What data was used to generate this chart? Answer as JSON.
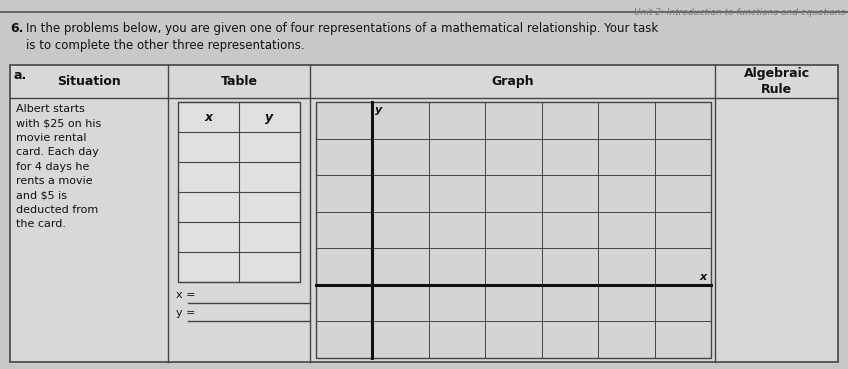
{
  "header_text": "Unit 2: Introduction to functions and equations",
  "problem_number": "6.",
  "problem_text": "In the problems below, you are given one of four representations of a mathematical relationship. Your task\nis to complete the other three representations.",
  "label_a": "a.",
  "col1_header": "Situation",
  "col2_header": "Table",
  "col3_header": "Graph",
  "col4_header": "Algebraic\nRule",
  "situation_text": "Albert starts\nwith $25 on his\nmovie rental\ncard. Each day\nfor 4 days he\nrents a movie\nand $5 is\ndeducted from\nthe card.",
  "table_col1": "x",
  "table_col2": "y",
  "table_rows": 5,
  "x_label_blank": "x =",
  "y_label_blank": "y =",
  "graph_x_label": "x",
  "graph_y_label": "y",
  "graph_cols": 7,
  "graph_rows": 7,
  "bg_color": "#c8c8c8",
  "box_bg": "#d8d8d8",
  "table_bg": "#e0e0e0",
  "graph_bg": "#d4d4d4",
  "line_color": "#444444",
  "thick_line_color": "#111111",
  "text_color": "#111111",
  "header_color": "#777777"
}
